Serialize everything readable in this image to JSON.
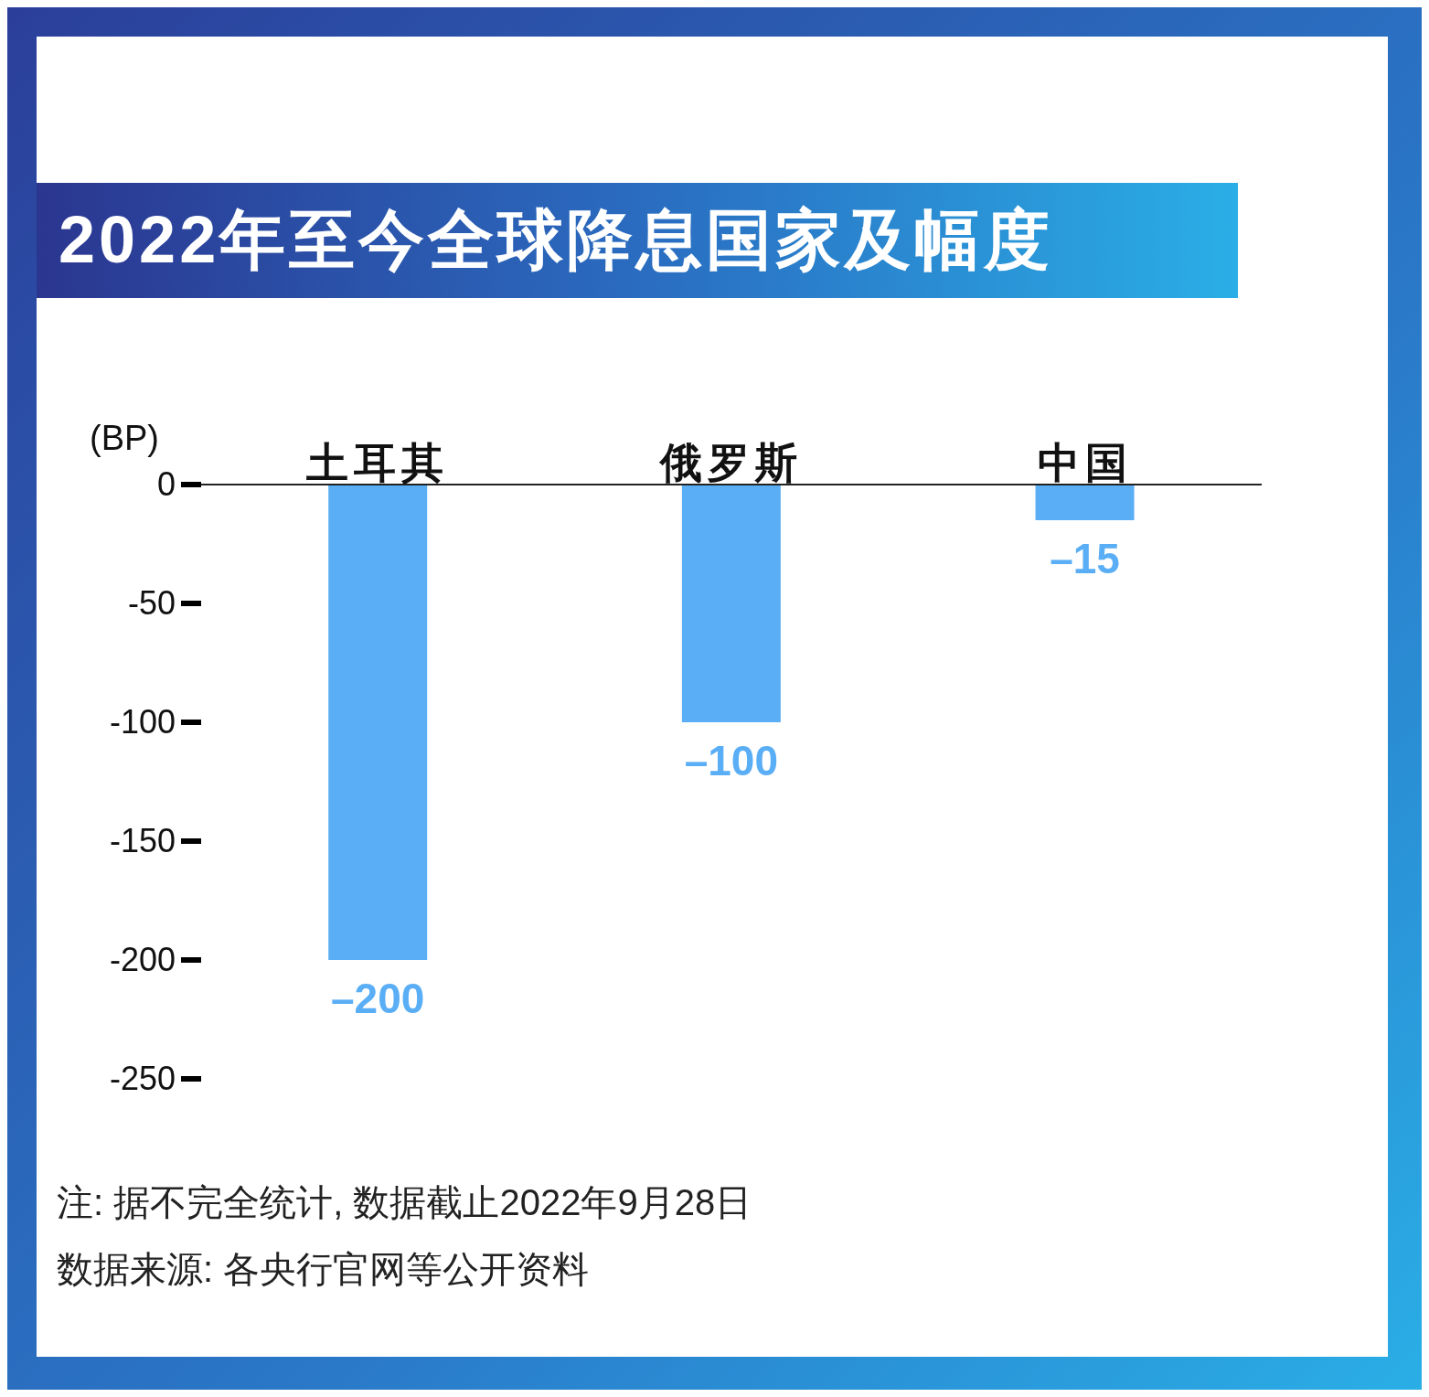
{
  "chart_data": {
    "type": "bar",
    "title": "2022年至今全球降息国家及幅度",
    "ylabel": "(BP)",
    "categories": [
      "土耳其",
      "俄罗斯",
      "中国"
    ],
    "values": [
      -200,
      -100,
      -15
    ],
    "color": "#5aaef5",
    "value_labels": [
      "–200",
      "–100",
      "–15"
    ],
    "ylim": [
      -250,
      0
    ],
    "yticks": [
      0,
      -50,
      -100,
      -150,
      -200,
      -250
    ],
    "annotations": [
      "注: 据不完全统计, 数据截止2022年9月28日",
      "数据来源: 各央行官网等公开资料"
    ]
  }
}
